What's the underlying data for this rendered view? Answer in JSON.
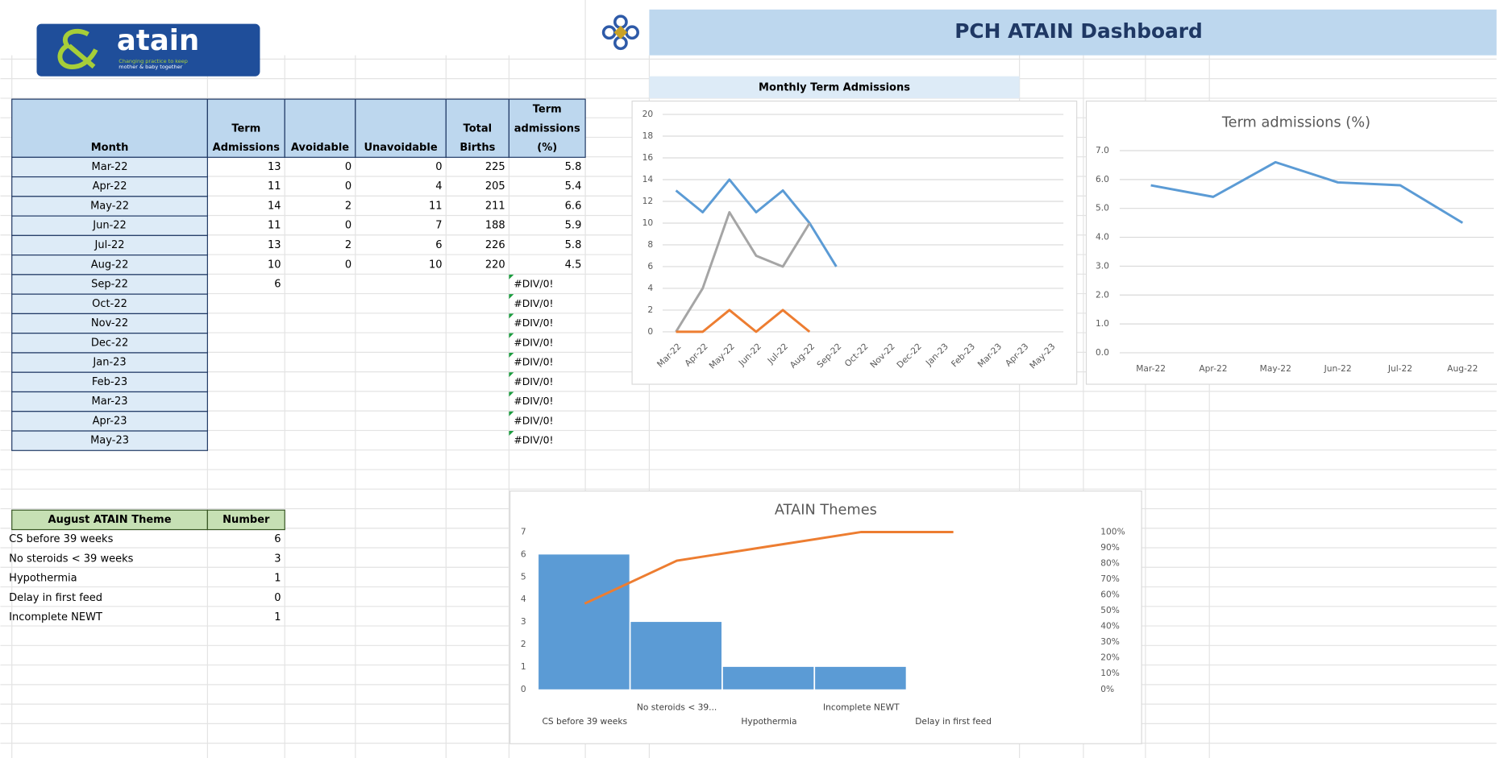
{
  "logo": {
    "name": "atain",
    "tagline": [
      "Changing practice to keep",
      "mother & baby together"
    ]
  },
  "header": {
    "title": "PCH ATAIN Dashboard",
    "section": "Monthly Term Admissions"
  },
  "table": {
    "columns": [
      [
        "Month"
      ],
      [
        "Term",
        "Admissions"
      ],
      [
        "Avoidable"
      ],
      [
        "Unavoidable"
      ],
      [
        "Total",
        "Births"
      ],
      [
        "Term",
        "admissions",
        "(%)"
      ]
    ],
    "rows": [
      [
        "Mar-22",
        13,
        0,
        0,
        225,
        5.8
      ],
      [
        "Apr-22",
        11,
        0,
        4,
        205,
        5.4
      ],
      [
        "May-22",
        14,
        2,
        11,
        211,
        6.6
      ],
      [
        "Jun-22",
        11,
        0,
        7,
        188,
        5.9
      ],
      [
        "Jul-22",
        13,
        2,
        6,
        226,
        5.8
      ],
      [
        "Aug-22",
        10,
        0,
        10,
        220,
        4.5
      ],
      [
        "Sep-22",
        6,
        null,
        null,
        null,
        "#DIV/0!"
      ],
      [
        "Oct-22",
        null,
        null,
        null,
        null,
        "#DIV/0!"
      ],
      [
        "Nov-22",
        null,
        null,
        null,
        null,
        "#DIV/0!"
      ],
      [
        "Dec-22",
        null,
        null,
        null,
        null,
        "#DIV/0!"
      ],
      [
        "Jan-23",
        null,
        null,
        null,
        null,
        "#DIV/0!"
      ],
      [
        "Feb-23",
        null,
        null,
        null,
        null,
        "#DIV/0!"
      ],
      [
        "Mar-23",
        null,
        null,
        null,
        null,
        "#DIV/0!"
      ],
      [
        "Apr-23",
        null,
        null,
        null,
        null,
        "#DIV/0!"
      ],
      [
        "May-23",
        null,
        null,
        null,
        null,
        "#DIV/0!"
      ]
    ]
  },
  "themes_table": {
    "columns": [
      "August ATAIN Theme",
      "Number"
    ],
    "rows": [
      [
        "CS before 39 weeks",
        6
      ],
      [
        "No steroids < 39 weeks",
        3
      ],
      [
        "Hypothermia",
        1
      ],
      [
        "Delay in first feed",
        0
      ],
      [
        "Incomplete NEWT",
        1
      ]
    ]
  },
  "chart_data": [
    {
      "type": "line",
      "categories": [
        "Mar-22",
        "Apr-22",
        "May-22",
        "Jun-22",
        "Jul-22",
        "Aug-22",
        "Sep-22",
        "Oct-22",
        "Nov-22",
        "Dec-22",
        "Jan-23",
        "Feb-23",
        "Mar-23",
        "Apr-23",
        "May-23"
      ],
      "series": [
        {
          "color": "#5b9bd5",
          "values": [
            13,
            11,
            14,
            11,
            13,
            10,
            6,
            null,
            null,
            null,
            null,
            null,
            null,
            null,
            null
          ]
        },
        {
          "color": "#a5a5a5",
          "values": [
            0,
            4,
            11,
            7,
            6,
            10,
            null,
            null,
            null,
            null,
            null,
            null,
            null,
            null,
            null
          ]
        },
        {
          "color": "#ed7d31",
          "values": [
            0,
            0,
            2,
            0,
            2,
            0,
            null,
            null,
            null,
            null,
            null,
            null,
            null,
            null,
            null
          ]
        }
      ],
      "ylim": [
        0,
        20
      ],
      "yticks": [
        0,
        2,
        4,
        6,
        8,
        10,
        12,
        14,
        16,
        18,
        20
      ],
      "grid": true
    },
    {
      "type": "line",
      "title": "Term admissions (%)",
      "categories": [
        "Mar-22",
        "Apr-22",
        "May-22",
        "Jun-22",
        "Jul-22",
        "Aug-22"
      ],
      "series": [
        {
          "color": "#5b9bd5",
          "values": [
            5.8,
            5.4,
            6.6,
            5.9,
            5.8,
            4.5
          ]
        }
      ],
      "ylim": [
        0,
        7
      ],
      "yticks": [
        {
          "value": 0,
          "label": "0.0"
        },
        {
          "value": 1,
          "label": "1.0"
        },
        {
          "value": 2,
          "label": "2.0"
        },
        {
          "value": 3,
          "label": "3.0"
        },
        {
          "value": 4,
          "label": "4.0"
        },
        {
          "value": 5,
          "label": "5.0"
        },
        {
          "value": 6,
          "label": "6.0"
        },
        {
          "value": 7,
          "label": "7.0"
        }
      ],
      "grid": true
    },
    {
      "type": "pareto",
      "title": "ATAIN Themes",
      "categories": [
        "CS before 39 weeks",
        "No steroids < 39...",
        "Hypothermia",
        "Incomplete NEWT",
        "Delay in first feed"
      ],
      "series": [
        {
          "color": "#5b9bd5",
          "values": [
            6,
            3,
            1,
            1,
            0
          ]
        },
        {
          "color": "#ed7d31",
          "values": [
            54.5,
            81.8,
            90.9,
            100,
            100
          ],
          "axis": "y2"
        }
      ],
      "ylim": [
        0,
        7
      ],
      "yticks": [
        0,
        1,
        2,
        3,
        4,
        5,
        6,
        7
      ],
      "y2lim": [
        0,
        100
      ],
      "y2ticks": [
        {
          "value": 0,
          "label": "0%"
        },
        {
          "value": 10,
          "label": "10%"
        },
        {
          "value": 20,
          "label": "20%"
        },
        {
          "value": 30,
          "label": "30%"
        },
        {
          "value": 40,
          "label": "40%"
        },
        {
          "value": 50,
          "label": "50%"
        },
        {
          "value": 60,
          "label": "60%"
        },
        {
          "value": 70,
          "label": "70%"
        },
        {
          "value": 80,
          "label": "80%"
        },
        {
          "value": 90,
          "label": "90%"
        },
        {
          "value": 100,
          "label": "100%"
        }
      ],
      "grid": false
    }
  ]
}
